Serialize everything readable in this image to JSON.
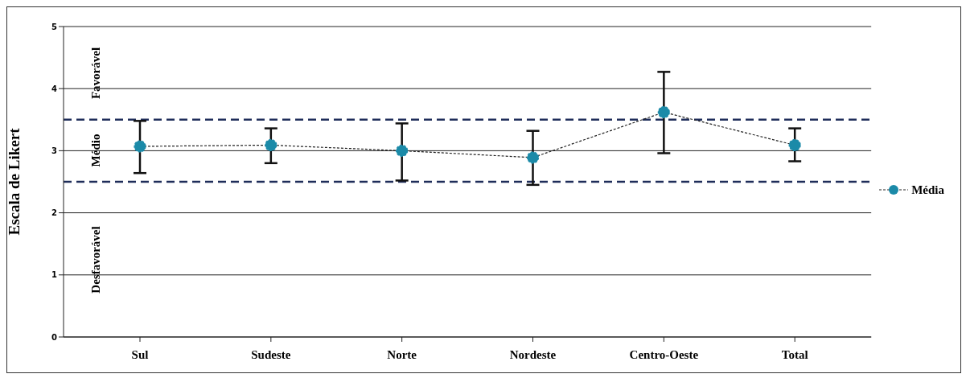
{
  "chart_data": {
    "type": "line",
    "ylabel": "Escala de Likert",
    "categories": [
      "Sul",
      "Sudeste",
      "Norte",
      "Nordeste",
      "Centro-Oeste",
      "Total"
    ],
    "series": [
      {
        "name": "Média",
        "color": "#1b8aa8",
        "values": [
          3.07,
          3.09,
          3.0,
          2.89,
          3.62,
          3.09
        ],
        "errors": [
          [
            2.64,
            3.48
          ],
          [
            2.8,
            3.36
          ],
          [
            2.52,
            3.44
          ],
          [
            2.45,
            3.32
          ],
          [
            2.96,
            4.27
          ],
          [
            2.83,
            3.36
          ]
        ]
      }
    ],
    "ylim": [
      0,
      5
    ],
    "yticks": [
      0,
      1,
      2,
      3,
      4,
      5
    ],
    "grid": "y",
    "legend": "right",
    "marker": "circle",
    "line_style": "dashed",
    "ref_lines": [
      {
        "axis": "y",
        "value": 3.5,
        "color": "#1f2d5a",
        "line_style": "dashed"
      },
      {
        "axis": "y",
        "value": 2.5,
        "color": "#1f2d5a",
        "line_style": "dashed"
      }
    ],
    "annotations": [
      "Favorável",
      "Médio",
      "Desfavorável"
    ]
  }
}
